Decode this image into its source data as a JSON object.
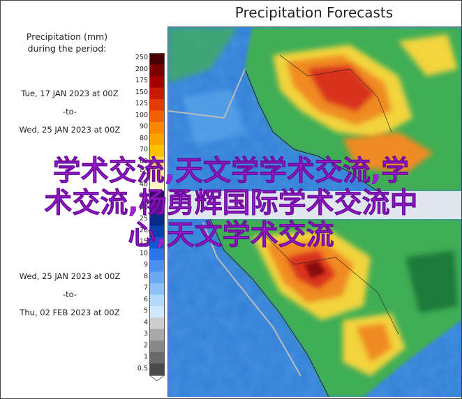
{
  "title": "Precipitation Forecasts",
  "legend": {
    "line1": "Precipitation  (mm)",
    "line2": "during the period:",
    "ticks": [
      "250",
      "200",
      "175",
      "150",
      "125",
      "100",
      "90",
      "80",
      "70",
      "60",
      "50",
      "40",
      "35",
      "30",
      "25",
      "20",
      "15",
      "10",
      "9",
      "8",
      "7",
      "6",
      "5",
      "4",
      "3",
      "2",
      "1",
      "0.5"
    ],
    "colors": [
      "#4a0000",
      "#7a0000",
      "#a00000",
      "#c81800",
      "#e23a00",
      "#f06000",
      "#f78800",
      "#fba400",
      "#ffc200",
      "#ffd84a",
      "#ffe98a",
      "#fff6c0",
      "#3a006a",
      "#5a1090",
      "#0a2a8a",
      "#0b3fb0",
      "#1058d0",
      "#2a74e8",
      "#4a90f0",
      "#6aa8f4",
      "#8cc0f8",
      "#b0d8fc",
      "#cfe8fe",
      "#cccccc",
      "#a8a8a8",
      "#888888",
      "#6a6a6a",
      "#4a4a4a"
    ],
    "tail_color": "#ffffff"
  },
  "periods": [
    {
      "start": "Tue, 17 JAN 2023 at 00Z",
      "to": "-to-",
      "end": "Wed, 25 JAN 2023 at 00Z"
    },
    {
      "start": "Wed, 25 JAN 2023 at 00Z",
      "to": "-to-",
      "end": "Thu, 02 FEB 2023 at 00Z"
    }
  ],
  "watermark": {
    "line1": "学术交流,天文学学术交流,学",
    "line2": "术交流,杨勇辉国际学术交流中",
    "line3": "心,天文学术交流"
  },
  "map_colors": {
    "ocean": "#2f7fd9",
    "ocean_light": "#5aa7ec",
    "green": "#3fae55",
    "green_dark": "#1f7a3a",
    "yellow": "#f2d43c",
    "orange": "#f08a22",
    "red": "#d8321a",
    "dark_red": "#8a0a0a",
    "andes": "#a8c0ff",
    "border": "#222222"
  }
}
